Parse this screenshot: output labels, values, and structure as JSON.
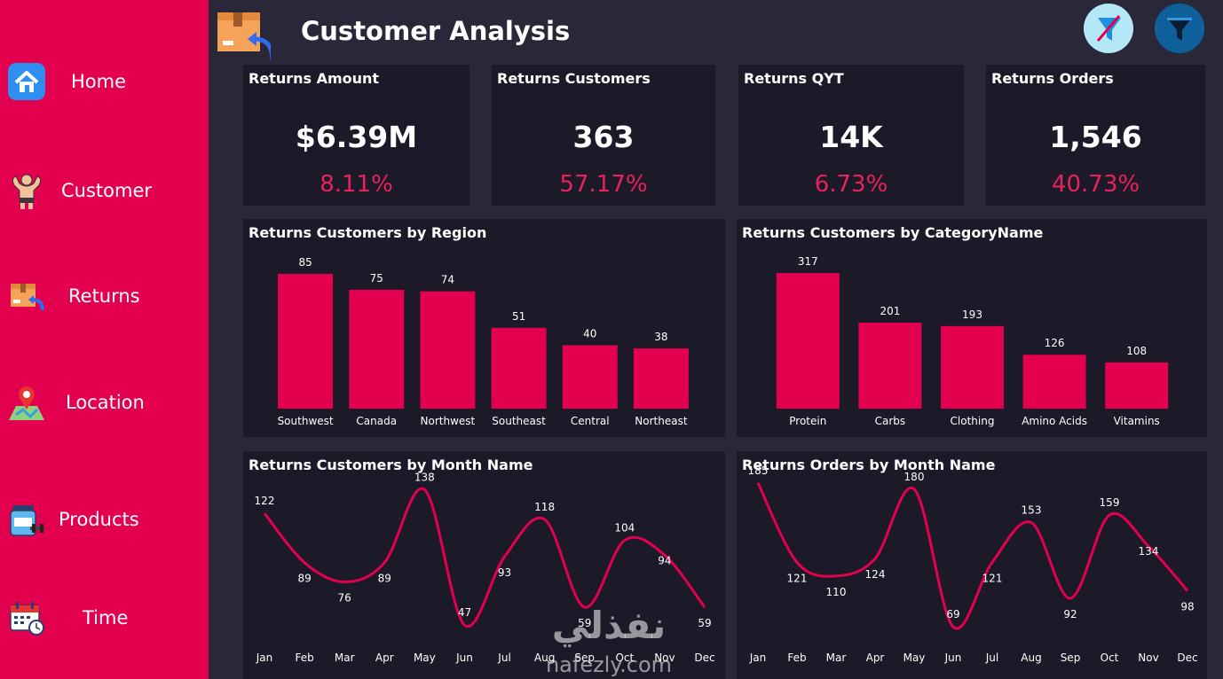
{
  "title": "Customer Analysis",
  "nav": [
    {
      "label": "Home",
      "icon": "home-icon"
    },
    {
      "label": "Customer",
      "icon": "bodybuilder-icon"
    },
    {
      "label": "Returns",
      "icon": "return-box-icon"
    },
    {
      "label": "Location",
      "icon": "map-pin-icon"
    },
    {
      "label": "Products",
      "icon": "supplement-jar-icon"
    },
    {
      "label": "Time",
      "icon": "calendar-clock-icon"
    }
  ],
  "header_buttons": [
    {
      "name": "clear-filters-button",
      "icon": "filter-off-icon"
    },
    {
      "name": "filter-pane-button",
      "icon": "filter-icon"
    }
  ],
  "kpis": [
    {
      "title": "Returns Amount",
      "value": "$6.39M",
      "pct": "8.11%"
    },
    {
      "title": "Returns Customers",
      "value": "363",
      "pct": "57.17%"
    },
    {
      "title": "Returns QYT",
      "value": "14K",
      "pct": "6.73%"
    },
    {
      "title": "Returns Orders",
      "value": "1,546",
      "pct": "40.73%"
    }
  ],
  "colors": {
    "sidebar": "#e3004f",
    "background": "#2a2838",
    "card": "#1c1929",
    "accent": "#e3004f",
    "pct_text": "#e8225a"
  },
  "watermark": {
    "arabic": "نفذلي",
    "latin": "nafezly.com"
  },
  "chart_data": [
    {
      "type": "bar",
      "title": "Returns Customers by Region",
      "categories": [
        "Southwest",
        "Canada",
        "Northwest",
        "Southeast",
        "Central",
        "Northeast"
      ],
      "values": [
        85,
        75,
        74,
        51,
        40,
        38
      ]
    },
    {
      "type": "bar",
      "title": "Returns Customers by CategoryName",
      "categories": [
        "Protein",
        "Carbs",
        "Clothing",
        "Amino Acids",
        "Vitamins"
      ],
      "values": [
        317,
        201,
        193,
        126,
        108
      ]
    },
    {
      "type": "line",
      "title": "Returns Customers by Month Name",
      "categories": [
        "Jan",
        "Feb",
        "Mar",
        "Apr",
        "May",
        "Jun",
        "Jul",
        "Aug",
        "Sep",
        "Oct",
        "Nov",
        "Dec"
      ],
      "values": [
        122,
        89,
        76,
        89,
        138,
        47,
        93,
        118,
        59,
        104,
        94,
        59
      ]
    },
    {
      "type": "line",
      "title": "Returns Orders by Month Name",
      "categories": [
        "Jan",
        "Feb",
        "Mar",
        "Apr",
        "May",
        "Jun",
        "Jul",
        "Aug",
        "Sep",
        "Oct",
        "Nov",
        "Dec"
      ],
      "values": [
        185,
        121,
        110,
        124,
        180,
        69,
        121,
        153,
        92,
        159,
        134,
        98
      ]
    }
  ]
}
